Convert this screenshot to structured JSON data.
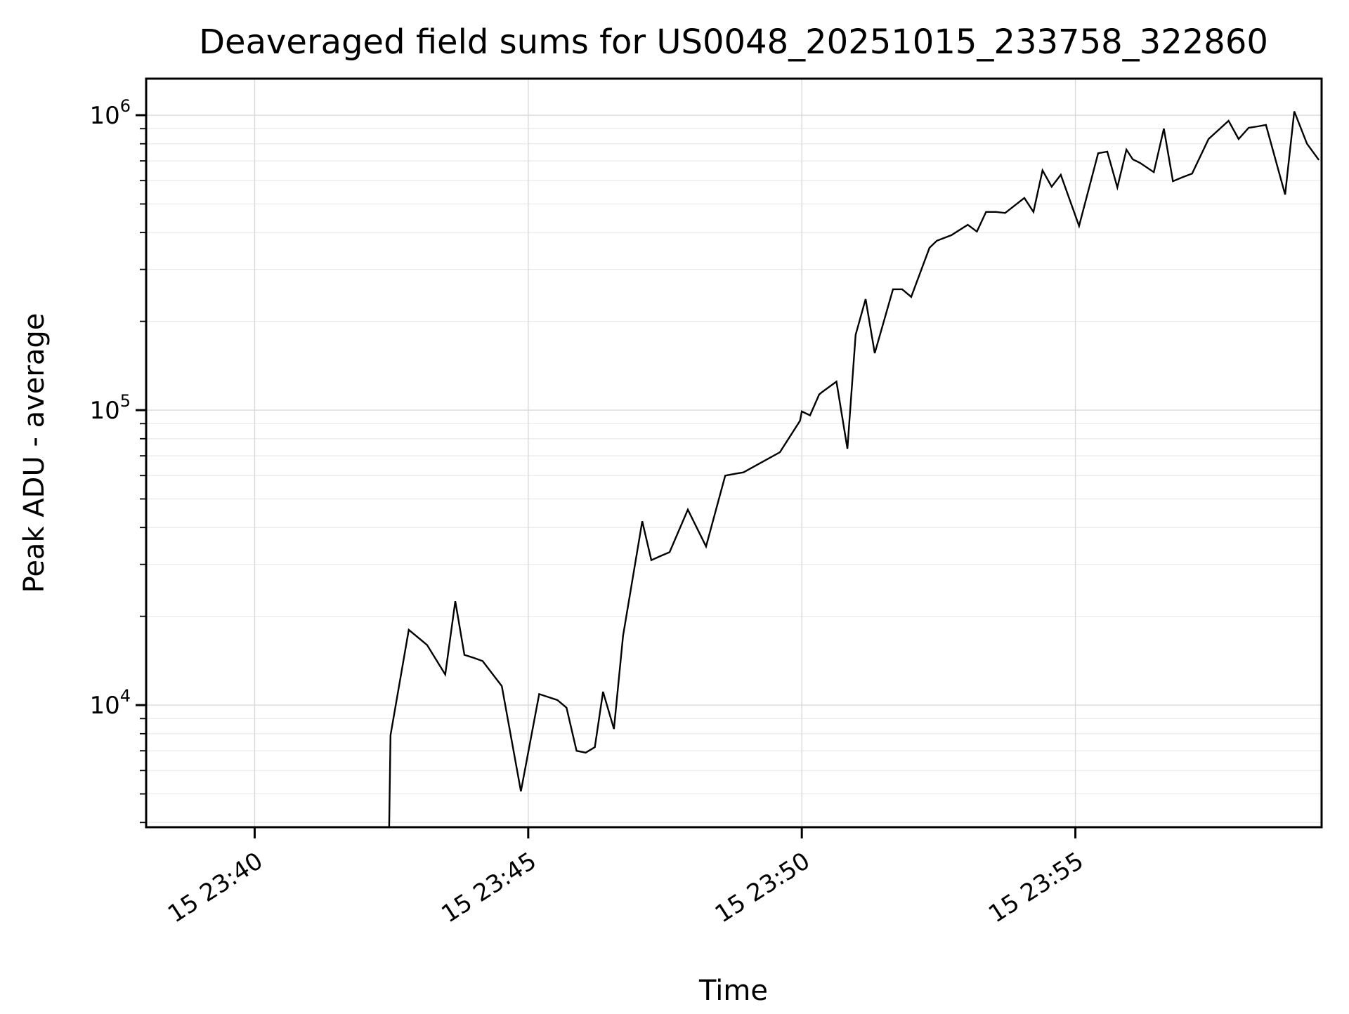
{
  "title": "Deaveraged field sums for US0048_20251015_233758_322860",
  "colors": {
    "line": "#000000",
    "spine": "#000000",
    "grid_major": "#d9d9d9",
    "grid_minor": "#e9e9e9",
    "background": "#ffffff",
    "text": "#000000"
  },
  "chart_data": {
    "type": "line",
    "title": "Deaveraged field sums for US0048_20251015_233758_322860",
    "xlabel": "Time",
    "ylabel": "Peak ADU - average",
    "x_scale": "time",
    "y_scale": "log",
    "grid": "both",
    "legend": "none",
    "xlim": [
      "23:38:01",
      "23:59:30"
    ],
    "ylim": [
      3855,
      1330000
    ],
    "x_ticks": [
      {
        "label": "15 23:40",
        "time": "23:40:00"
      },
      {
        "label": "15 23:45",
        "time": "23:45:00"
      },
      {
        "label": "15 23:50",
        "time": "23:50:00"
      },
      {
        "label": "15 23:55",
        "time": "23:55:00"
      }
    ],
    "y_ticks": [
      {
        "base": "10",
        "exponent": "4",
        "value": 10000
      },
      {
        "base": "10",
        "exponent": "5",
        "value": 100000
      },
      {
        "base": "10",
        "exponent": "6",
        "value": 1000000
      }
    ],
    "y_minor_ticks": [
      4000,
      5000,
      6000,
      7000,
      8000,
      9000,
      20000,
      30000,
      40000,
      50000,
      60000,
      70000,
      80000,
      90000,
      200000,
      300000,
      400000,
      500000,
      600000,
      700000,
      800000,
      900000
    ],
    "series": [
      {
        "name": "Peak ADU - average",
        "color": "#000000",
        "points": [
          {
            "t": "23:42:27",
            "v": 3000
          },
          {
            "t": "23:42:29",
            "v": 7900
          },
          {
            "t": "23:42:49",
            "v": 18000
          },
          {
            "t": "23:43:09",
            "v": 16000
          },
          {
            "t": "23:43:29",
            "v": 12700
          },
          {
            "t": "23:43:40",
            "v": 22500
          },
          {
            "t": "23:43:50",
            "v": 14800
          },
          {
            "t": "23:43:59",
            "v": 14500
          },
          {
            "t": "23:44:10",
            "v": 14100
          },
          {
            "t": "23:44:31",
            "v": 11600
          },
          {
            "t": "23:44:52",
            "v": 5100
          },
          {
            "t": "23:45:12",
            "v": 10900
          },
          {
            "t": "23:45:32",
            "v": 10400
          },
          {
            "t": "23:45:42",
            "v": 9800
          },
          {
            "t": "23:45:53",
            "v": 7000
          },
          {
            "t": "23:46:03",
            "v": 6900
          },
          {
            "t": "23:46:13",
            "v": 7200
          },
          {
            "t": "23:46:22",
            "v": 11100
          },
          {
            "t": "23:46:34",
            "v": 8300
          },
          {
            "t": "23:46:44",
            "v": 17200
          },
          {
            "t": "23:47:05",
            "v": 42000
          },
          {
            "t": "23:47:15",
            "v": 31000
          },
          {
            "t": "23:47:25",
            "v": 32000
          },
          {
            "t": "23:47:35",
            "v": 33000
          },
          {
            "t": "23:47:55",
            "v": 46000
          },
          {
            "t": "23:48:15",
            "v": 34500
          },
          {
            "t": "23:48:36",
            "v": 60000
          },
          {
            "t": "23:48:49",
            "v": 61000
          },
          {
            "t": "23:48:56",
            "v": 61500
          },
          {
            "t": "23:49:36",
            "v": 72000
          },
          {
            "t": "23:49:58",
            "v": 92000
          },
          {
            "t": "23:50:00",
            "v": 99000
          },
          {
            "t": "23:50:09",
            "v": 96000
          },
          {
            "t": "23:50:19",
            "v": 113000
          },
          {
            "t": "23:50:22",
            "v": 115000
          },
          {
            "t": "23:50:38",
            "v": 125000
          },
          {
            "t": "23:50:50",
            "v": 74000
          },
          {
            "t": "23:50:59",
            "v": 180000
          },
          {
            "t": "23:51:10",
            "v": 238000
          },
          {
            "t": "23:51:20",
            "v": 156000
          },
          {
            "t": "23:51:40",
            "v": 257000
          },
          {
            "t": "23:51:50",
            "v": 257000
          },
          {
            "t": "23:52:00",
            "v": 242000
          },
          {
            "t": "23:52:20",
            "v": 355000
          },
          {
            "t": "23:52:28",
            "v": 375000
          },
          {
            "t": "23:52:44",
            "v": 392000
          },
          {
            "t": "23:53:02",
            "v": 425000
          },
          {
            "t": "23:53:12",
            "v": 403000
          },
          {
            "t": "23:53:22",
            "v": 470000
          },
          {
            "t": "23:53:33",
            "v": 470000
          },
          {
            "t": "23:53:43",
            "v": 466000
          },
          {
            "t": "23:54:04",
            "v": 524000
          },
          {
            "t": "23:54:14",
            "v": 470000
          },
          {
            "t": "23:54:24",
            "v": 650000
          },
          {
            "t": "23:54:34",
            "v": 572000
          },
          {
            "t": "23:54:44",
            "v": 628000
          },
          {
            "t": "23:55:04",
            "v": 421000
          },
          {
            "t": "23:55:25",
            "v": 743000
          },
          {
            "t": "23:55:35",
            "v": 752000
          },
          {
            "t": "23:55:46",
            "v": 569000
          },
          {
            "t": "23:55:56",
            "v": 764000
          },
          {
            "t": "23:56:03",
            "v": 708000
          },
          {
            "t": "23:56:11",
            "v": 689000
          },
          {
            "t": "23:56:26",
            "v": 641000
          },
          {
            "t": "23:56:37",
            "v": 900000
          },
          {
            "t": "23:56:47",
            "v": 597000
          },
          {
            "t": "23:56:58",
            "v": 617000
          },
          {
            "t": "23:57:08",
            "v": 634000
          },
          {
            "t": "23:57:26",
            "v": 830000
          },
          {
            "t": "23:57:48",
            "v": 957000
          },
          {
            "t": "23:57:59",
            "v": 830000
          },
          {
            "t": "23:58:10",
            "v": 906000
          },
          {
            "t": "23:58:20",
            "v": 916000
          },
          {
            "t": "23:58:29",
            "v": 927000
          },
          {
            "t": "23:58:50",
            "v": 538000
          },
          {
            "t": "23:59:00",
            "v": 1030000
          },
          {
            "t": "23:59:14",
            "v": 800000
          },
          {
            "t": "23:59:27",
            "v": 705000
          }
        ]
      }
    ]
  }
}
